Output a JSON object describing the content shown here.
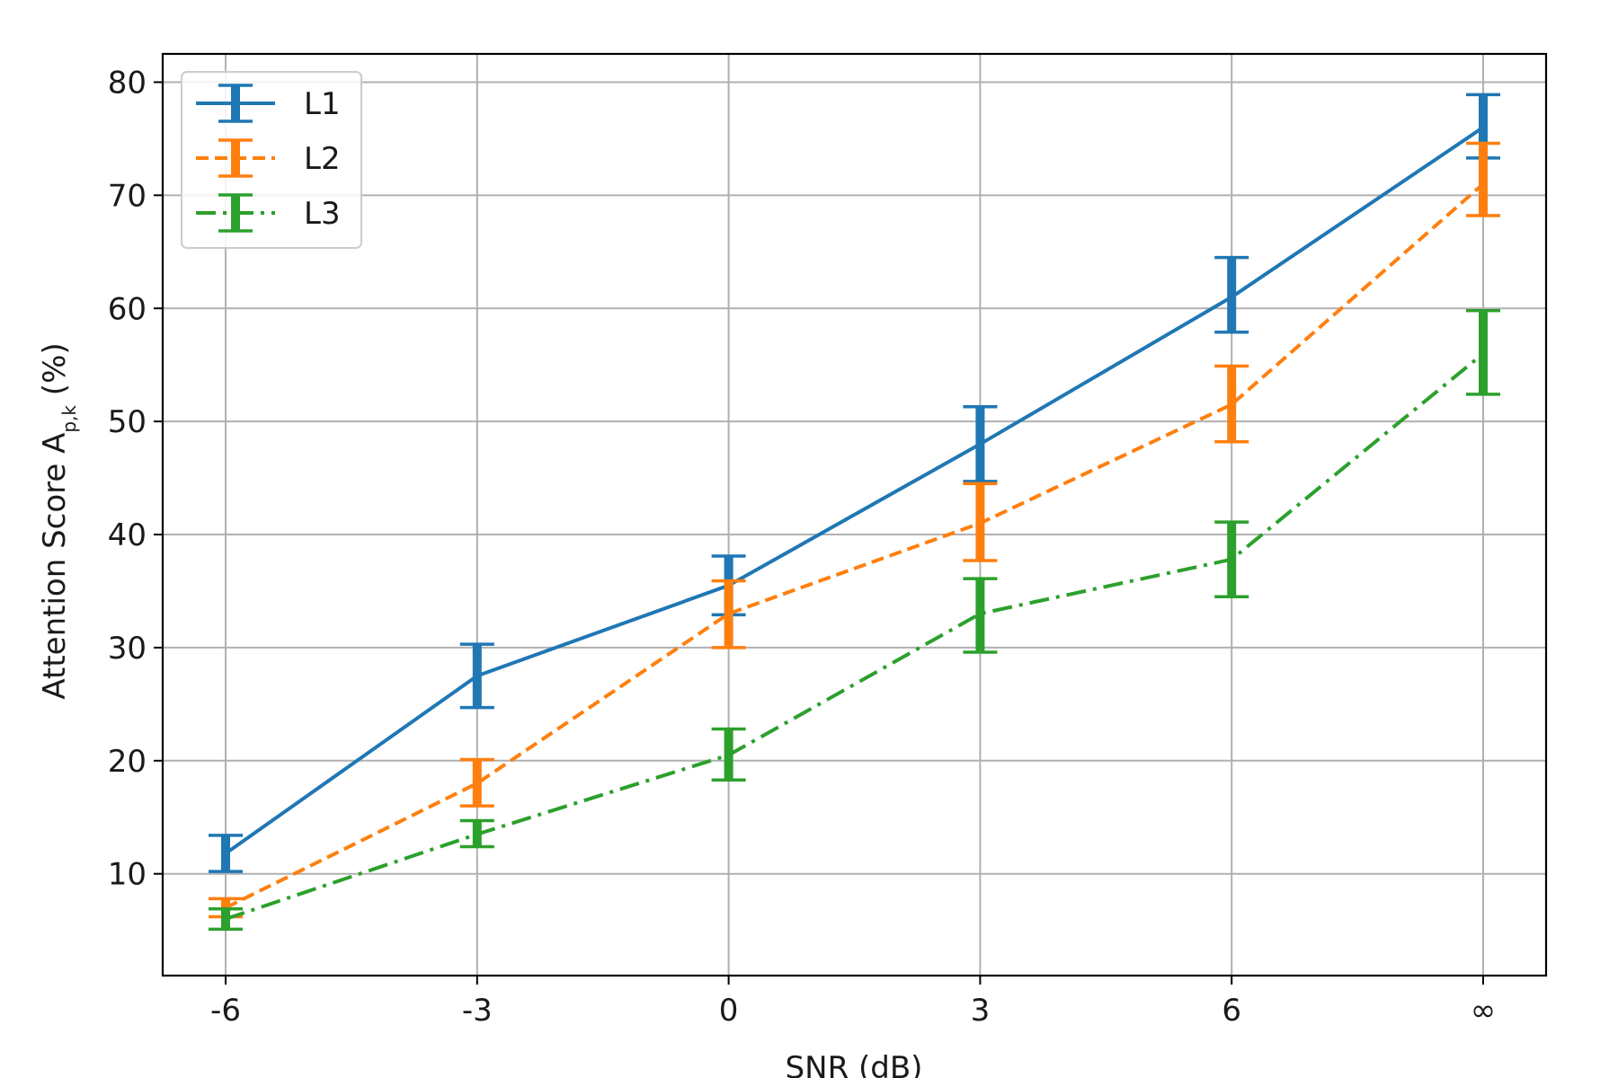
{
  "chart_data": {
    "type": "line",
    "title": "",
    "xlabel": "SNR (dB)",
    "ylabel": {
      "main": "Attention Score A",
      "sub": "p,k",
      "unit": " (%)"
    },
    "categories": [
      "-6",
      "-3",
      "0",
      "3",
      "6",
      "∞"
    ],
    "ylim": [
      1,
      82.5
    ],
    "yticks": [
      10,
      20,
      30,
      40,
      50,
      60,
      70,
      80
    ],
    "grid": true,
    "legend": "top-left",
    "series": [
      {
        "name": "L1",
        "color": "#1f77b4",
        "linestyle": "solid",
        "values": [
          11.8,
          27.5,
          35.5,
          48.0,
          61.0,
          76.0
        ],
        "err_low": [
          10.2,
          24.7,
          32.9,
          44.7,
          57.9,
          73.3
        ],
        "err_high": [
          13.4,
          30.3,
          38.1,
          51.3,
          64.5,
          78.9
        ]
      },
      {
        "name": "L2",
        "color": "#ff7f0e",
        "linestyle": "dashed",
        "values": [
          7.0,
          18.0,
          33.0,
          41.0,
          51.5,
          71.0
        ],
        "err_low": [
          6.2,
          16.0,
          30.0,
          37.7,
          48.2,
          68.2
        ],
        "err_high": [
          7.8,
          20.1,
          35.9,
          44.5,
          54.9,
          74.6
        ]
      },
      {
        "name": "L3",
        "color": "#2ca02c",
        "linestyle": "dashdot",
        "values": [
          6.0,
          13.5,
          20.5,
          33.0,
          37.8,
          56.0
        ],
        "err_low": [
          5.1,
          12.4,
          18.3,
          29.6,
          34.5,
          52.4
        ],
        "err_high": [
          6.9,
          14.7,
          22.8,
          36.1,
          41.1,
          59.8
        ]
      }
    ]
  }
}
